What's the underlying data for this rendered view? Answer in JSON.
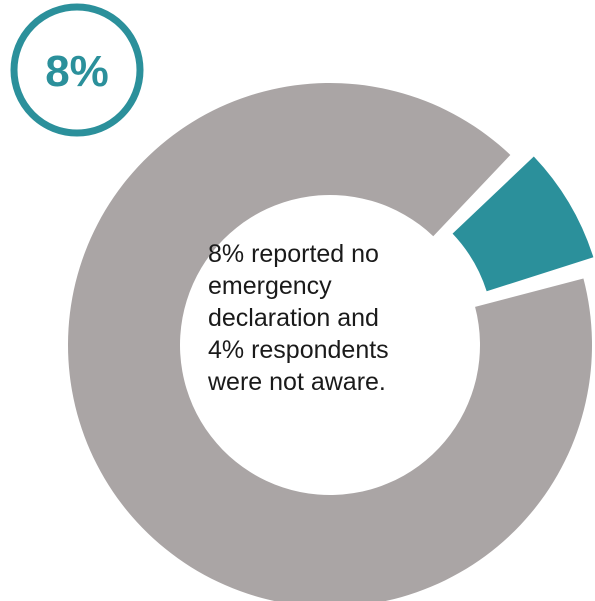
{
  "chart_data": {
    "type": "pie",
    "style": "donut",
    "slices": [
      {
        "value": 8,
        "color": "#2b909b",
        "highlighted": true
      },
      {
        "value": 92,
        "color": "#aaa5a5"
      }
    ],
    "badge_label": "8%",
    "annotation_lines": [
      "8% reported no",
      "emergency",
      "declaration and",
      "4% respondents",
      "were not aware."
    ]
  },
  "colors": {
    "accent": "#2b909b",
    "remainder": "#aaa5a5",
    "text": "#1a1a1a",
    "background": "#ffffff"
  }
}
